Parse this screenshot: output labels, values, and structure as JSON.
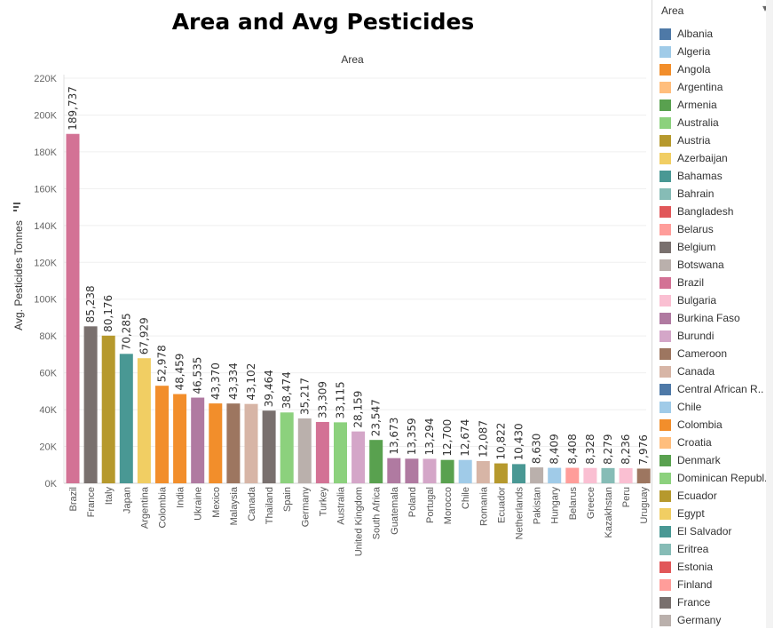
{
  "chart_data": {
    "type": "bar",
    "title": "Area and Avg Pesticides",
    "subtitle": "Area",
    "xlabel": "",
    "ylabel": "Avg. Pesticides Tonnes",
    "ylim": [
      0,
      220000
    ],
    "yticks": [
      "0K",
      "20K",
      "40K",
      "60K",
      "80K",
      "100K",
      "120K",
      "140K",
      "160K",
      "180K",
      "200K",
      "220K"
    ],
    "grid": true,
    "legend_position": "right",
    "categories": [
      "Brazil",
      "France",
      "Italy",
      "Japan",
      "Argentina",
      "Colombia",
      "India",
      "Ukraine",
      "Mexico",
      "Malaysia",
      "Canada",
      "Thailand",
      "Spain",
      "Germany",
      "Turkey",
      "Australia",
      "United Kingdom",
      "South Africa",
      "Guatemala",
      "Poland",
      "Portugal",
      "Morocco",
      "Chile",
      "Romania",
      "Ecuador",
      "Netherlands",
      "Pakistan",
      "Hungary",
      "Belarus",
      "Greece",
      "Kazakhstan",
      "Peru",
      "Uruguay"
    ],
    "values": [
      189737,
      85238,
      80176,
      70285,
      67929,
      52978,
      48459,
      46535,
      43370,
      43334,
      43102,
      39464,
      38474,
      35217,
      33309,
      33115,
      28159,
      23547,
      13673,
      13359,
      13294,
      12700,
      12674,
      12087,
      10822,
      10430,
      8630,
      8409,
      8408,
      8328,
      8279,
      8236,
      7976
    ],
    "labels": [
      "189,737",
      "85,238",
      "80,176",
      "70,285",
      "67,929",
      "52,978",
      "48,459",
      "46,535",
      "43,370",
      "43,334",
      "43,102",
      "39,464",
      "38,474",
      "35,217",
      "33,309",
      "33,115",
      "28,159",
      "23,547",
      "13,673",
      "13,359",
      "13,294",
      "12,700",
      "12,674",
      "12,087",
      "10,822",
      "10,430",
      "8,630",
      "8,409",
      "8,408",
      "8,328",
      "8,279",
      "8,236",
      "7,976"
    ],
    "colors": [
      "#d37295",
      "#79706e",
      "#b6992d",
      "#499894",
      "#f1ce63",
      "#f28e2b",
      "#f28e2b",
      "#b07aa1",
      "#f28e2b",
      "#9d7660",
      "#d7b5a6",
      "#79706e",
      "#8cd17d",
      "#bab0ac",
      "#d37295",
      "#8cd17d",
      "#d4a6c8",
      "#59a14f",
      "#b07aa1",
      "#b07aa1",
      "#d4a6c8",
      "#59a14f",
      "#a0cbe8",
      "#d7b5a6",
      "#b6992d",
      "#499894",
      "#bab0ac",
      "#a0cbe8",
      "#ff9d9a",
      "#fabfd2",
      "#86bcb6",
      "#fabfd2",
      "#9d7660"
    ]
  },
  "legend": {
    "title": "Area",
    "items": [
      {
        "label": "Albania",
        "color": "#4e79a7"
      },
      {
        "label": "Algeria",
        "color": "#a0cbe8"
      },
      {
        "label": "Angola",
        "color": "#f28e2b"
      },
      {
        "label": "Argentina",
        "color": "#ffbe7d"
      },
      {
        "label": "Armenia",
        "color": "#59a14f"
      },
      {
        "label": "Australia",
        "color": "#8cd17d"
      },
      {
        "label": "Austria",
        "color": "#b6992d"
      },
      {
        "label": "Azerbaijan",
        "color": "#f1ce63"
      },
      {
        "label": "Bahamas",
        "color": "#499894"
      },
      {
        "label": "Bahrain",
        "color": "#86bcb6"
      },
      {
        "label": "Bangladesh",
        "color": "#e15759"
      },
      {
        "label": "Belarus",
        "color": "#ff9d9a"
      },
      {
        "label": "Belgium",
        "color": "#79706e"
      },
      {
        "label": "Botswana",
        "color": "#bab0ac"
      },
      {
        "label": "Brazil",
        "color": "#d37295"
      },
      {
        "label": "Bulgaria",
        "color": "#fabfd2"
      },
      {
        "label": "Burkina Faso",
        "color": "#b07aa1"
      },
      {
        "label": "Burundi",
        "color": "#d4a6c8"
      },
      {
        "label": "Cameroon",
        "color": "#9d7660"
      },
      {
        "label": "Canada",
        "color": "#d7b5a6"
      },
      {
        "label": "Central African R..",
        "color": "#4e79a7"
      },
      {
        "label": "Chile",
        "color": "#a0cbe8"
      },
      {
        "label": "Colombia",
        "color": "#f28e2b"
      },
      {
        "label": "Croatia",
        "color": "#ffbe7d"
      },
      {
        "label": "Denmark",
        "color": "#59a14f"
      },
      {
        "label": "Dominican Republ..",
        "color": "#8cd17d"
      },
      {
        "label": "Ecuador",
        "color": "#b6992d"
      },
      {
        "label": "Egypt",
        "color": "#f1ce63"
      },
      {
        "label": "El Salvador",
        "color": "#499894"
      },
      {
        "label": "Eritrea",
        "color": "#86bcb6"
      },
      {
        "label": "Estonia",
        "color": "#e15759"
      },
      {
        "label": "Finland",
        "color": "#ff9d9a"
      },
      {
        "label": "France",
        "color": "#79706e"
      },
      {
        "label": "Germany",
        "color": "#bab0ac"
      }
    ]
  }
}
